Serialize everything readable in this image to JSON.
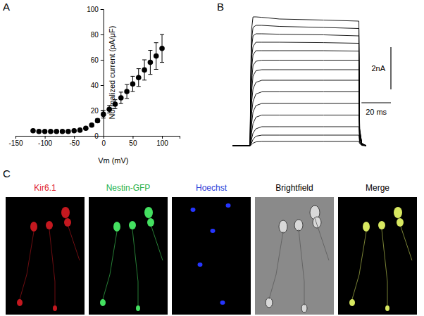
{
  "chart_data": [
    {
      "type": "scatter",
      "title": "A",
      "x": [
        -120,
        -110,
        -100,
        -90,
        -80,
        -70,
        -60,
        -50,
        -40,
        -30,
        -20,
        -10,
        0,
        10,
        20,
        30,
        40,
        50,
        60,
        70,
        80,
        90,
        100
      ],
      "values": [
        4,
        3.5,
        3.5,
        3.5,
        3.5,
        3.5,
        3.5,
        4,
        4.5,
        6,
        8.5,
        12,
        17,
        21,
        25,
        30,
        35,
        41,
        46,
        52,
        58,
        63,
        69
      ],
      "errors": [
        0.5,
        0.5,
        0.5,
        0.5,
        0.5,
        0.5,
        0.5,
        0.5,
        0.5,
        1,
        1,
        1.5,
        3,
        3,
        3.5,
        4.5,
        5.5,
        6,
        7,
        8,
        9.5,
        10.5,
        11
      ],
      "xlim": [
        -150,
        130
      ],
      "ylim": [
        0,
        100
      ],
      "xticks": [
        -150,
        -100,
        -50,
        0,
        50,
        100
      ],
      "yticks": [
        0,
        20,
        40,
        60,
        80,
        100
      ],
      "xlabel": "Vm (mV)",
      "ylabel": "Normalized current (pA/μF)",
      "color": "#000000",
      "marker": "circle"
    },
    {
      "type": "line",
      "title": "B",
      "x": [
        -12,
        0,
        0.5,
        1,
        2,
        4,
        8,
        20,
        50,
        74,
        74.5,
        76,
        79
      ],
      "series": [
        {
          "values": [
            0,
            0,
            3.7,
            5.5,
            6.1,
            6.1,
            6.08,
            6.0,
            5.95,
            5.9,
            0.8,
            0.1,
            0
          ]
        },
        {
          "values": [
            0,
            0,
            3.3,
            5.0,
            5.6,
            5.7,
            5.7,
            5.65,
            5.6,
            5.55,
            0.8,
            0.1,
            0
          ]
        },
        {
          "values": [
            0,
            0,
            3.0,
            4.6,
            5.2,
            5.3,
            5.3,
            5.28,
            5.25,
            5.2,
            0.7,
            0.1,
            0
          ]
        },
        {
          "values": [
            0,
            0,
            2.6,
            4.1,
            4.7,
            4.9,
            4.9,
            4.9,
            4.88,
            4.85,
            0.7,
            0.1,
            0
          ]
        },
        {
          "values": [
            0,
            0,
            2.2,
            3.6,
            4.3,
            4.5,
            4.5,
            4.5,
            4.5,
            4.48,
            0.6,
            0.1,
            0
          ]
        },
        {
          "values": [
            0,
            0,
            1.8,
            3.0,
            3.8,
            4.0,
            4.05,
            4.05,
            4.05,
            4.05,
            0.6,
            0.05,
            0
          ]
        },
        {
          "values": [
            0,
            0,
            1.4,
            2.5,
            3.3,
            3.55,
            3.6,
            3.6,
            3.6,
            3.6,
            0.5,
            0.05,
            0
          ]
        },
        {
          "values": [
            0,
            0,
            1.0,
            2.0,
            2.7,
            3.0,
            3.1,
            3.1,
            3.1,
            3.1,
            0.5,
            0.05,
            0
          ]
        },
        {
          "values": [
            0,
            0,
            0.7,
            1.5,
            2.1,
            2.45,
            2.55,
            2.55,
            2.55,
            2.55,
            0.4,
            0.05,
            0
          ]
        },
        {
          "values": [
            0,
            0,
            0.45,
            1.0,
            1.6,
            1.9,
            2.0,
            2.0,
            2.0,
            2.0,
            0.35,
            0.05,
            0
          ]
        },
        {
          "values": [
            0,
            0,
            0.25,
            0.6,
            1.05,
            1.35,
            1.45,
            1.45,
            1.45,
            1.45,
            0.3,
            0.05,
            0
          ]
        },
        {
          "values": [
            0,
            0,
            0.1,
            0.3,
            0.6,
            0.8,
            0.9,
            0.9,
            0.9,
            0.9,
            0.2,
            0.03,
            0
          ]
        },
        {
          "values": [
            0,
            0,
            0.05,
            0.12,
            0.3,
            0.45,
            0.5,
            0.5,
            0.5,
            0.5,
            0.15,
            0.02,
            0
          ]
        },
        {
          "values": [
            0,
            0,
            0.02,
            0.05,
            0.12,
            0.18,
            0.2,
            0.2,
            0.2,
            0.2,
            0.1,
            0.01,
            0
          ]
        }
      ],
      "xlim": [
        -12,
        79
      ],
      "ylim": [
        -0.2,
        6.3
      ],
      "color": "#000000",
      "tick_labels": false,
      "scale_bars": [
        {
          "label": "2nA",
          "value": 2,
          "axis": "y"
        },
        {
          "label": "20 ms",
          "value": 20,
          "axis": "x"
        }
      ]
    }
  ],
  "panel_c": {
    "title": "C",
    "channels": [
      {
        "label": "Kir6.1",
        "color": "#e0202a"
      },
      {
        "label": "Nestin-GFP",
        "color": "#22b04a"
      },
      {
        "label": "Hoechst",
        "color": "#2a3cd8"
      },
      {
        "label": "Brightfield",
        "color": "#000000"
      },
      {
        "label": "Merge",
        "color": "#000000"
      }
    ]
  }
}
